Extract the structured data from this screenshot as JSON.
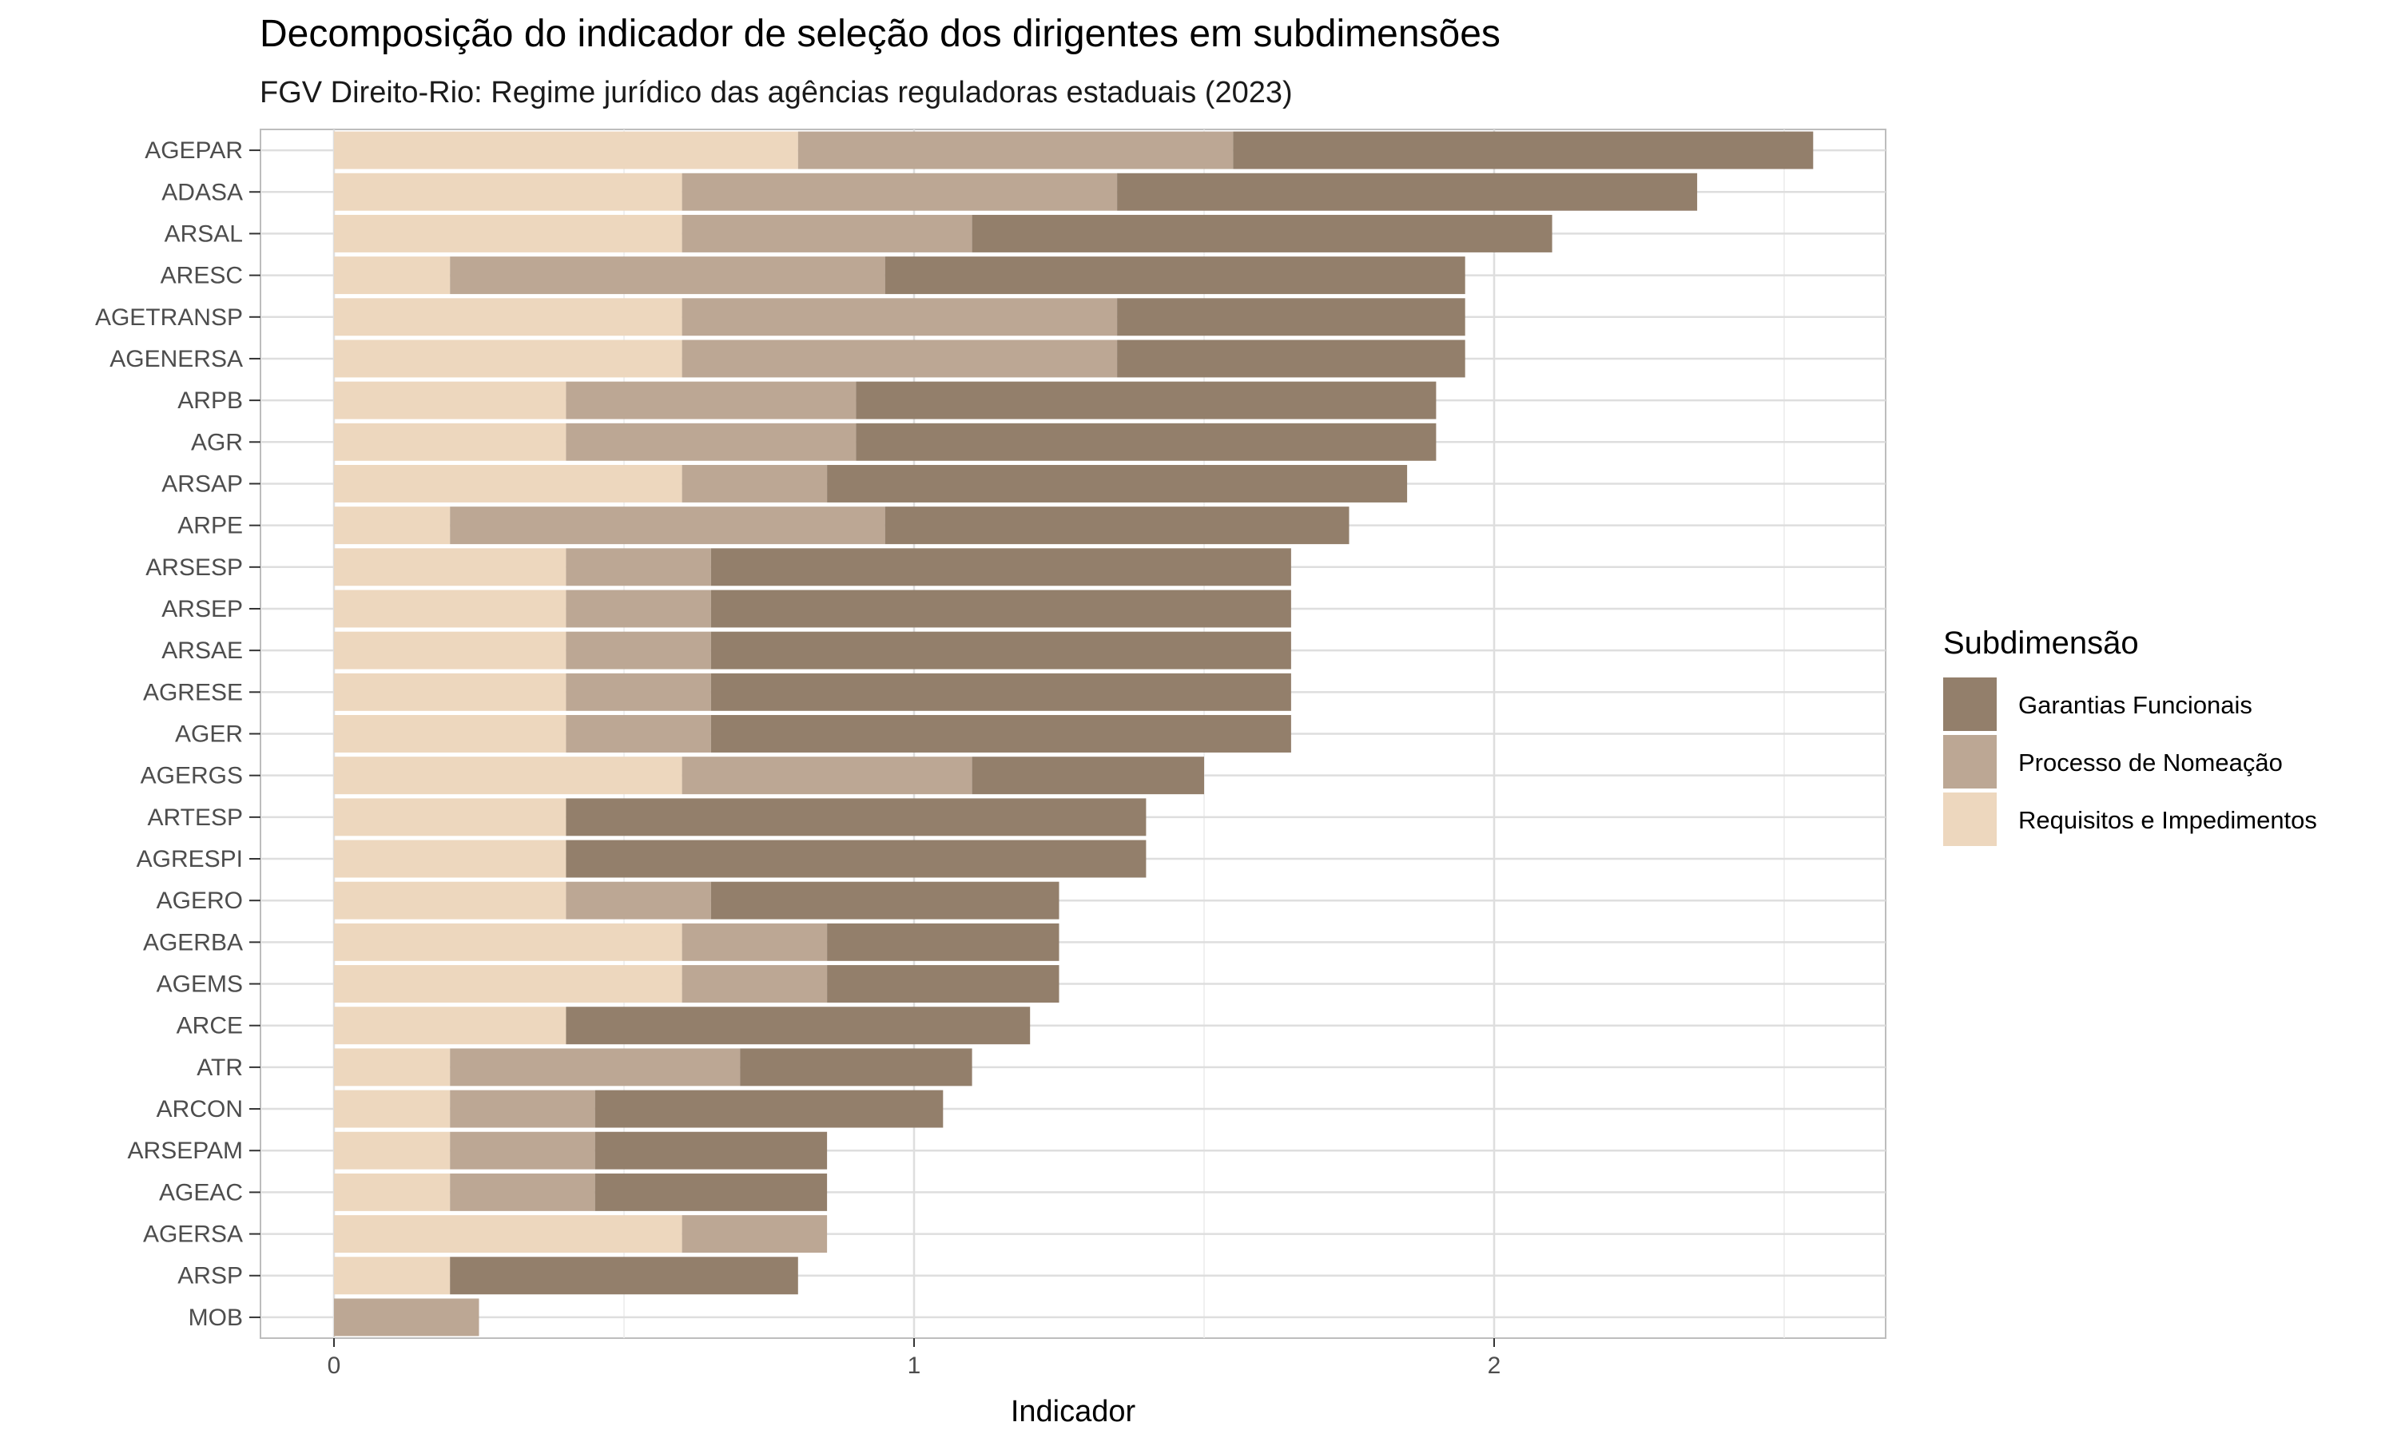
{
  "chart_data": {
    "type": "bar",
    "orientation": "horizontal",
    "stacked": true,
    "title": "Decomposição do indicador de seleção dos dirigentes em subdimensões",
    "subtitle": "FGV Direito-Rio: Regime jurídico das agências reguladoras estaduais (2023)",
    "xlabel": "Indicador",
    "ylabel": "",
    "xlim": [
      -0.12,
      2.68
    ],
    "x_ticks": [
      0,
      1,
      2
    ],
    "x_tick_labels": [
      "0",
      "1",
      "2"
    ],
    "grid": true,
    "legend_position": "right",
    "legend_title": "Subdimensão",
    "categories": [
      "AGEPAR",
      "ADASA",
      "ARSAL",
      "ARESC",
      "AGETRANSP",
      "AGENERSA",
      "ARPB",
      "AGR",
      "ARSAP",
      "ARPE",
      "ARSESP",
      "ARSEP",
      "ARSAE",
      "AGRESE",
      "AGER",
      "AGERGS",
      "ARTESP",
      "AGRESPI",
      "AGERO",
      "AGERBA",
      "AGEMS",
      "ARCE",
      "ATR",
      "ARCON",
      "ARSEPAM",
      "AGEAC",
      "AGERSA",
      "ARSP",
      "MOB"
    ],
    "series": [
      {
        "name": "Requisitos e Impedimentos",
        "color": "#EDD7BE",
        "values": [
          0.8,
          0.6,
          0.6,
          0.2,
          0.6,
          0.6,
          0.4,
          0.4,
          0.6,
          0.2,
          0.4,
          0.4,
          0.4,
          0.4,
          0.4,
          0.6,
          0.4,
          0.4,
          0.4,
          0.6,
          0.6,
          0.4,
          0.2,
          0.2,
          0.2,
          0.2,
          0.6,
          0.2,
          0.0
        ]
      },
      {
        "name": "Processo de Nomeação",
        "color": "#BCA794",
        "values": [
          0.75,
          0.75,
          0.5,
          0.75,
          0.75,
          0.75,
          0.5,
          0.5,
          0.25,
          0.75,
          0.25,
          0.25,
          0.25,
          0.25,
          0.25,
          0.5,
          0.0,
          0.0,
          0.25,
          0.25,
          0.25,
          0.0,
          0.5,
          0.25,
          0.25,
          0.25,
          0.25,
          0.0,
          0.25
        ]
      },
      {
        "name": "Garantias Funcionais",
        "color": "#937F6B",
        "values": [
          1.0,
          1.0,
          1.0,
          1.0,
          0.6,
          0.6,
          1.0,
          1.0,
          1.0,
          0.8,
          1.0,
          1.0,
          1.0,
          1.0,
          1.0,
          0.4,
          1.0,
          1.0,
          0.6,
          0.4,
          0.4,
          0.8,
          0.4,
          0.6,
          0.4,
          0.4,
          0.0,
          0.6,
          0.0
        ]
      }
    ],
    "legend_order": [
      "Garantias Funcionais",
      "Processo de Nomeação",
      "Requisitos e Impedimentos"
    ]
  }
}
